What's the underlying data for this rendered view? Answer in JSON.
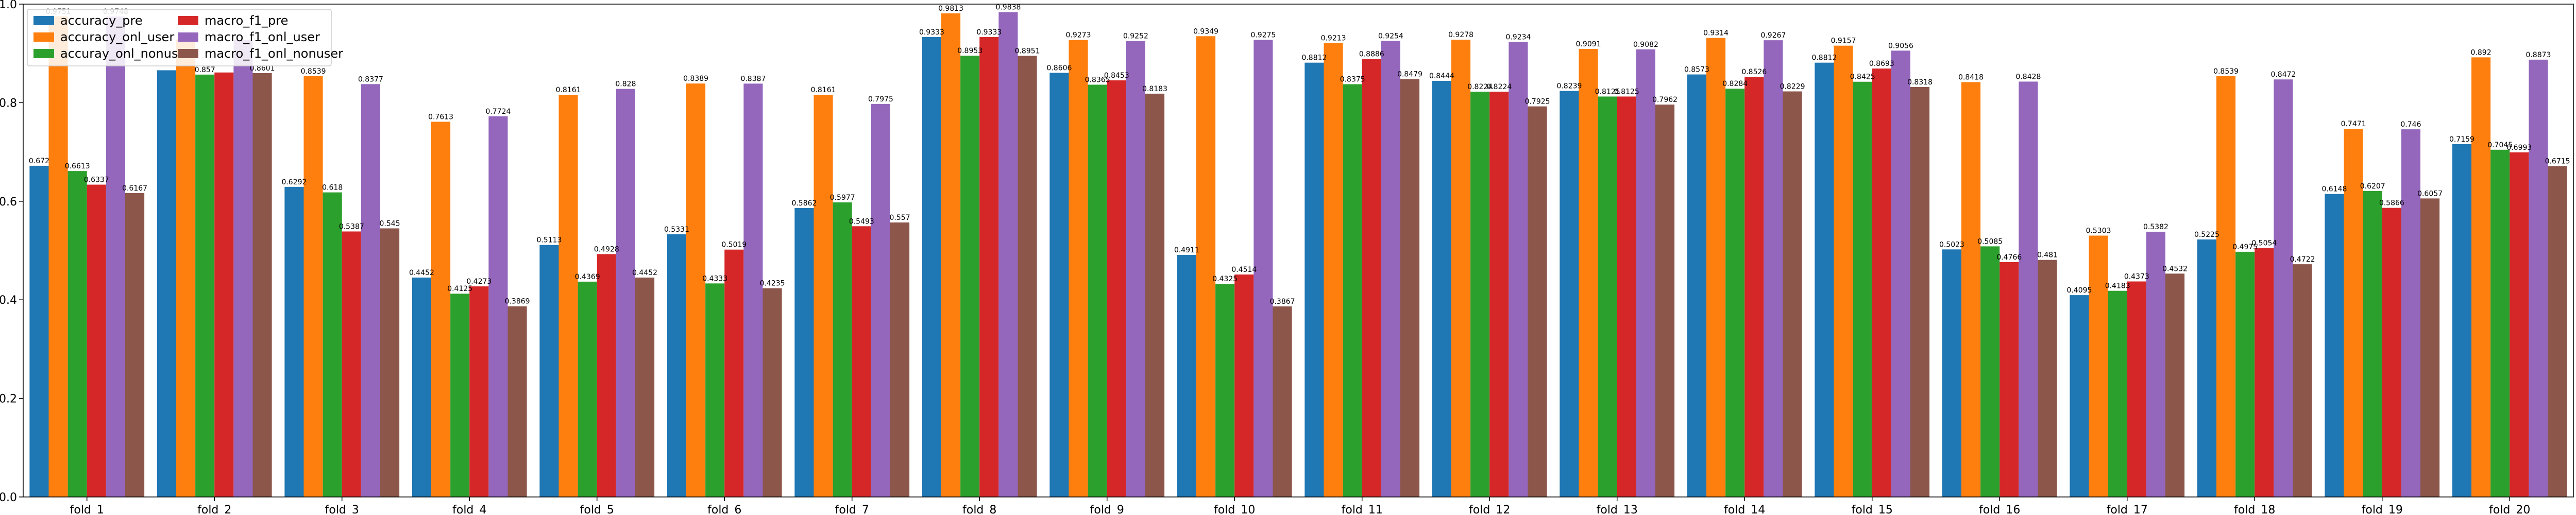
{
  "chart_data": {
    "type": "bar",
    "title": "",
    "xlabel": "",
    "ylabel": "",
    "ylim": [
      0,
      1.0
    ],
    "yticks": [
      "0.0",
      "0.2",
      "0.4",
      "0.6",
      "0.8",
      "1.0"
    ],
    "grid": false,
    "legend_position": "top-left",
    "categories": [
      "fold_1",
      "fold_2",
      "fold_3",
      "fold_4",
      "fold_5",
      "fold_6",
      "fold_7",
      "fold_8",
      "fold_9",
      "fold_10",
      "fold_11",
      "fold_12",
      "fold_13",
      "fold_14",
      "fold_15",
      "fold_16",
      "fold_17",
      "fold_18",
      "fold_19",
      "fold_20"
    ],
    "series": [
      {
        "name": "accuracy_pre",
        "color": "#1f77b4",
        "values": [
          0.672,
          0.8658,
          0.6292,
          0.4452,
          0.5113,
          0.5331,
          0.5862,
          0.9333,
          0.8606,
          0.4911,
          0.8812,
          0.8444,
          0.8239,
          0.8573,
          0.8812,
          0.5023,
          0.4095,
          0.5225,
          0.6148,
          0.7159
        ],
        "labels": [
          "0.672",
          "",
          "0.6292",
          "0.4452",
          "0.5113",
          "0.5331",
          "0.5862",
          "0.9333",
          "0.8606",
          "0.4911",
          "0.8812",
          "0.8444",
          "0.8239",
          "0.8573",
          "0.8812",
          "0.5023",
          "0.4095",
          "0.5225",
          "0.6148",
          "0.7159"
        ]
      },
      {
        "name": "accuracy_onl_user",
        "color": "#ff7f0e",
        "values": [
          0.9751,
          0.9283,
          0.8539,
          0.7613,
          0.8161,
          0.8389,
          0.8161,
          0.9813,
          0.9273,
          0.9349,
          0.9213,
          0.9278,
          0.9091,
          0.9314,
          0.9157,
          0.8418,
          0.5303,
          0.8539,
          0.7471,
          0.892
        ],
        "labels": [
          "0.9751",
          "",
          "0.8539",
          "0.7613",
          "0.8161",
          "0.8389",
          "0.8161",
          "0.9813",
          "0.9273",
          "0.9349",
          "0.9213",
          "0.9278",
          "0.9091",
          "0.9314",
          "0.9157",
          "0.8418",
          "0.5303",
          "0.8539",
          "0.7471",
          "0.892"
        ]
      },
      {
        "name": "accuray_onl_nonuser",
        "color": "#2ca02c",
        "values": [
          0.6613,
          0.857,
          0.618,
          0.4125,
          0.4369,
          0.4333,
          0.5977,
          0.8953,
          0.8365,
          0.4325,
          0.8375,
          0.8224,
          0.8125,
          0.8284,
          0.8425,
          0.5085,
          0.4183,
          0.4975,
          0.6207,
          0.7045
        ],
        "labels": [
          "0.6613",
          "0.857",
          "0.618",
          "0.4125",
          "0.4369",
          "0.4333",
          "0.5977",
          "0.8953",
          "0.8365",
          "0.4325",
          "0.8375",
          "0.8224",
          "0.8125",
          "0.8284",
          "0.8425",
          "0.5085",
          "0.4183",
          "0.4975",
          "0.6207",
          "0.7045"
        ]
      },
      {
        "name": "macro_f1_pre",
        "color": "#d62728",
        "values": [
          0.6337,
          0.8613,
          0.5387,
          0.4273,
          0.4928,
          0.5019,
          0.5493,
          0.9333,
          0.8453,
          0.4514,
          0.8886,
          0.8224,
          0.8125,
          0.8526,
          0.8693,
          0.4766,
          0.4373,
          0.5054,
          0.5866,
          0.6993
        ],
        "labels": [
          "0.6337",
          "",
          "0.5387",
          "0.4273",
          "0.4928",
          "0.5019",
          "0.5493",
          "0.9333",
          "0.8453",
          "0.4514",
          "0.8886",
          "0.8224",
          "0.8125",
          "0.8526",
          "0.8693",
          "0.4766",
          "0.4373",
          "0.5054",
          "0.5866",
          "0.6993"
        ]
      },
      {
        "name": "macro_f1_onl_user",
        "color": "#9467bd",
        "values": [
          0.9748,
          0.9276,
          0.8377,
          0.7724,
          0.828,
          0.8387,
          0.7975,
          0.9838,
          0.9252,
          0.9275,
          0.9254,
          0.9234,
          0.9082,
          0.9267,
          0.9056,
          0.8428,
          0.5382,
          0.8472,
          0.746,
          0.8873
        ],
        "labels": [
          "0.9748",
          "",
          "0.8377",
          "0.7724",
          "0.828",
          "0.8387",
          "0.7975",
          "0.9838",
          "0.9252",
          "0.9275",
          "0.9254",
          "0.9234",
          "0.9082",
          "0.9267",
          "0.9056",
          "0.8428",
          "0.5382",
          "0.8472",
          "0.746",
          "0.8873"
        ]
      },
      {
        "name": "macro_f1_onl_nonuser",
        "color": "#8c564b",
        "values": [
          0.6167,
          0.8601,
          0.545,
          0.3869,
          0.4452,
          0.4235,
          0.557,
          0.8951,
          0.8183,
          0.3867,
          0.8479,
          0.7925,
          0.7962,
          0.8229,
          0.8318,
          0.481,
          0.4532,
          0.4722,
          0.6057,
          0.6715
        ],
        "labels": [
          "0.6167",
          "0.8601",
          "0.545",
          "0.3869",
          "0.4452",
          "0.4235",
          "0.557",
          "0.8951",
          "0.8183",
          "0.3867",
          "0.8479",
          "0.7925",
          "0.7962",
          "0.8229",
          "0.8318",
          "0.481",
          "0.4532",
          "0.4722",
          "0.6057",
          "0.6715"
        ]
      }
    ]
  }
}
